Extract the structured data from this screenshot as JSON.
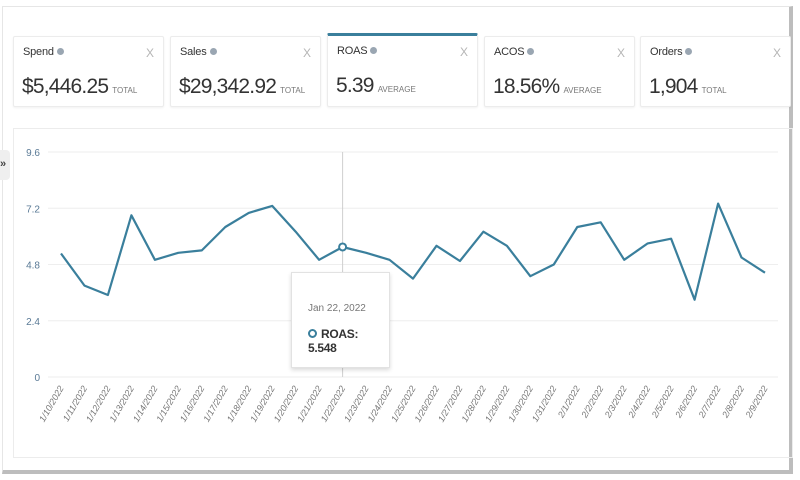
{
  "metrics": [
    {
      "title": "Spend",
      "value": "$5,446.25",
      "unit": "TOTAL",
      "close": "X",
      "active": false
    },
    {
      "title": "Sales",
      "value": "$29,342.92",
      "unit": "TOTAL",
      "close": "X",
      "active": false
    },
    {
      "title": "ROAS",
      "value": "5.39",
      "unit": "AVERAGE",
      "close": "X",
      "active": true
    },
    {
      "title": "ACOS",
      "value": "18.56%",
      "unit": "AVERAGE",
      "close": "X",
      "active": false
    },
    {
      "title": "Orders",
      "value": "1,904",
      "unit": "TOTAL",
      "close": "X",
      "active": false
    }
  ],
  "sidebar_toggle": "»",
  "colors": {
    "line": "#3a7f9c",
    "grid": "#eeeeee",
    "axis_text": "#5a7a96"
  },
  "tooltip": {
    "date": "Jan 22, 2022",
    "label": "ROAS: 5.548"
  },
  "chart_data": {
    "type": "line",
    "title": "",
    "xlabel": "",
    "ylabel": "",
    "ylim": [
      0,
      9.6
    ],
    "yticks": [
      "0",
      "2.4",
      "4.8",
      "7.2",
      "9.6"
    ],
    "grid": true,
    "legend": "none",
    "categories": [
      "1/10/2022",
      "1/11/2022",
      "1/12/2022",
      "1/13/2022",
      "1/14/2022",
      "1/15/2022",
      "1/16/2022",
      "1/17/2022",
      "1/18/2022",
      "1/19/2022",
      "1/20/2022",
      "1/21/2022",
      "1/22/2022",
      "1/23/2022",
      "1/24/2022",
      "1/25/2022",
      "1/26/2022",
      "1/27/2022",
      "1/28/2022",
      "1/29/2022",
      "1/30/2022",
      "1/31/2022",
      "2/1/2022",
      "2/2/2022",
      "2/3/2022",
      "2/4/2022",
      "2/5/2022",
      "2/6/2022",
      "2/7/2022",
      "2/8/2022",
      "2/9/2022"
    ],
    "series": [
      {
        "name": "ROAS",
        "values": [
          5.27,
          3.9,
          3.5,
          6.9,
          5.0,
          5.3,
          5.4,
          6.4,
          7.0,
          7.3,
          6.2,
          5.0,
          5.548,
          5.3,
          5.0,
          4.2,
          5.6,
          4.95,
          6.2,
          5.6,
          4.3,
          4.8,
          6.4,
          6.6,
          5.0,
          5.7,
          5.9,
          3.3,
          7.4,
          5.1,
          4.45
        ]
      }
    ],
    "highlight": {
      "index": 12,
      "date": "Jan 22, 2022",
      "value": 5.548
    }
  }
}
